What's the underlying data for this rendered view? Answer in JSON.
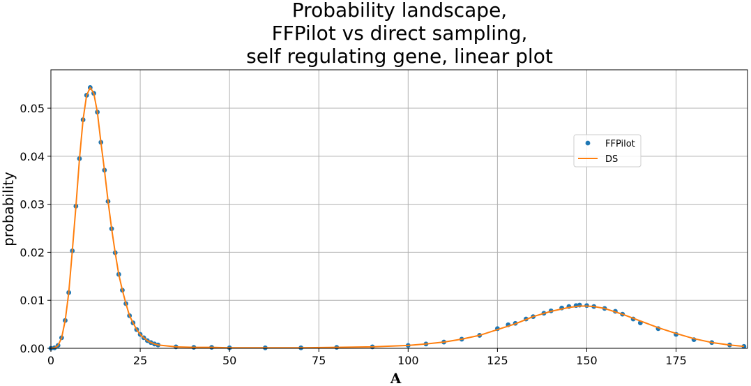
{
  "chart_data": {
    "type": "line",
    "title": [
      "Probability landscape,",
      "FFPilot vs direct sampling,",
      "self regulating gene, linear plot"
    ],
    "xlabel": "A",
    "ylabel": "probability",
    "xlim": [
      0,
      195
    ],
    "ylim": [
      0,
      0.058
    ],
    "x_ticks": [
      0,
      25,
      50,
      75,
      100,
      125,
      150,
      175
    ],
    "y_ticks": [
      0.0,
      0.01,
      0.02,
      0.03,
      0.04,
      0.05
    ],
    "x_tick_labels": [
      "0",
      "25",
      "50",
      "75",
      "100",
      "125",
      "150",
      "175"
    ],
    "y_tick_labels": [
      "0.00",
      "0.01",
      "0.02",
      "0.03",
      "0.04",
      "0.05"
    ],
    "grid": true,
    "legend_position": "upper-right-center",
    "series": [
      {
        "name": "FFPilot",
        "style": "markers",
        "color": "#1f77b4",
        "x": [
          0,
          1,
          2,
          3,
          4,
          5,
          6,
          7,
          8,
          9,
          10,
          11,
          12,
          13,
          14,
          15,
          16,
          17,
          18,
          19,
          20,
          21,
          22,
          23,
          24,
          25,
          26,
          27,
          28,
          29,
          30,
          35,
          40,
          45,
          50,
          60,
          70,
          80,
          90,
          100,
          105,
          110,
          115,
          120,
          125,
          128,
          130,
          133,
          135,
          138,
          140,
          143,
          145,
          147,
          148,
          150,
          152,
          155,
          158,
          160,
          163,
          165,
          170,
          175,
          180,
          185,
          190,
          194
        ],
        "y": [
          0.0,
          0.0001,
          0.0006,
          0.0022,
          0.0058,
          0.0116,
          0.0203,
          0.0296,
          0.0395,
          0.0476,
          0.0527,
          0.0543,
          0.0531,
          0.0492,
          0.0429,
          0.0371,
          0.0306,
          0.0249,
          0.0199,
          0.0154,
          0.0121,
          0.0093,
          0.0068,
          0.0053,
          0.0039,
          0.0029,
          0.0022,
          0.0016,
          0.0012,
          0.0009,
          0.0007,
          0.0003,
          0.0002,
          0.0002,
          0.0001,
          0.0001,
          0.0001,
          0.0002,
          0.0003,
          0.0006,
          0.0009,
          0.0013,
          0.0019,
          0.0027,
          0.0041,
          0.0049,
          0.0052,
          0.0061,
          0.0066,
          0.0073,
          0.0078,
          0.0084,
          0.0087,
          0.0089,
          0.009,
          0.0089,
          0.0087,
          0.0083,
          0.0077,
          0.0071,
          0.0061,
          0.0053,
          0.0041,
          0.0029,
          0.0018,
          0.0012,
          0.0007,
          0.0004
        ]
      },
      {
        "name": "DS",
        "style": "line",
        "color": "#ff7f0e",
        "x": [
          0,
          1,
          2,
          3,
          4,
          5,
          6,
          7,
          8,
          9,
          10,
          11,
          12,
          13,
          14,
          15,
          16,
          17,
          18,
          19,
          20,
          21,
          22,
          23,
          24,
          25,
          26,
          27,
          28,
          29,
          30,
          35,
          40,
          45,
          50,
          60,
          70,
          80,
          90,
          100,
          105,
          110,
          115,
          120,
          125,
          130,
          135,
          140,
          145,
          148,
          150,
          152,
          155,
          160,
          165,
          170,
          175,
          180,
          185,
          190,
          194
        ],
        "y": [
          0.0,
          0.0001,
          0.0006,
          0.0022,
          0.0058,
          0.0116,
          0.0203,
          0.0296,
          0.0395,
          0.0476,
          0.0527,
          0.0543,
          0.0531,
          0.0492,
          0.0429,
          0.0371,
          0.0306,
          0.0249,
          0.0199,
          0.0154,
          0.0121,
          0.0093,
          0.0068,
          0.0053,
          0.0039,
          0.0029,
          0.0022,
          0.0016,
          0.0012,
          0.0009,
          0.0007,
          0.0003,
          0.0002,
          0.0002,
          0.0001,
          0.0001,
          0.0001,
          0.0002,
          0.0003,
          0.0006,
          0.0009,
          0.0013,
          0.0019,
          0.0027,
          0.0039,
          0.0051,
          0.0066,
          0.0077,
          0.0085,
          0.0088,
          0.0088,
          0.0087,
          0.0083,
          0.0071,
          0.0057,
          0.0043,
          0.0031,
          0.002,
          0.0012,
          0.0007,
          0.0004
        ]
      }
    ]
  }
}
